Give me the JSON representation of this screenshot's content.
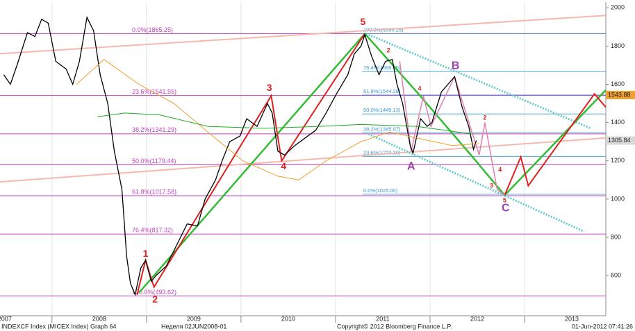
{
  "chart_data": {
    "type": "line",
    "xlim": [
      2007.45,
      2013.86
    ],
    "ylim": [
      390,
      2030
    ],
    "yticks": [
      600,
      800,
      1000,
      1200,
      1400,
      1600,
      1800,
      2000
    ],
    "xticks": [
      {
        "value": 2007.5,
        "label": "2007"
      },
      {
        "value": 2008.5,
        "label": "2008"
      },
      {
        "value": 2009.5,
        "label": "2009"
      },
      {
        "value": 2010.5,
        "label": "2010"
      },
      {
        "value": 2011.5,
        "label": "2011"
      },
      {
        "value": 2012.5,
        "label": "2012"
      },
      {
        "value": 2013.5,
        "label": "2013"
      }
    ],
    "xgrid": [
      2008,
      2009,
      2010,
      2011,
      2012,
      2013
    ],
    "series": [
      {
        "color": "#000000",
        "x": [
          2007.49,
          2007.56,
          2007.63,
          2007.74,
          2007.82,
          2007.89,
          2007.96,
          2008.04,
          2008.15,
          2008.22,
          2008.29,
          2008.37,
          2008.44,
          2008.51,
          2008.59,
          2008.66,
          2008.74,
          2008.79,
          2008.83,
          2008.88,
          2008.94,
          2008.99,
          2009.05,
          2009.1,
          2009.21,
          2009.32,
          2009.43,
          2009.54,
          2009.62,
          2009.73,
          2009.8,
          2009.88,
          2009.99,
          2010.06,
          2010.17,
          2010.28,
          2010.33,
          2010.39,
          2010.46,
          2010.57,
          2010.68,
          2010.79,
          2010.9,
          2011.01,
          2011.13,
          2011.2,
          2011.27,
          2011.31,
          2011.38,
          2011.46,
          2011.53,
          2011.6,
          2011.65,
          2011.71,
          2011.79,
          2011.82,
          2011.9,
          2011.97,
          2012.02,
          2012.12,
          2012.19,
          2012.26,
          2012.34,
          2012.41,
          2012.46,
          2012.49
        ],
        "values": [
          1650,
          1600,
          1700,
          1870,
          1850,
          1940,
          1920,
          1720,
          1680,
          1600,
          1720,
          1950,
          1880,
          1650,
          1500,
          1250,
          1050,
          700,
          560,
          500,
          640,
          680,
          570,
          600,
          650,
          760,
          870,
          860,
          1000,
          1100,
          1200,
          1300,
          1330,
          1420,
          1380,
          1500,
          1450,
          1250,
          1230,
          1280,
          1320,
          1360,
          1450,
          1550,
          1650,
          1760,
          1800,
          1860,
          1750,
          1650,
          1720,
          1730,
          1600,
          1500,
          1280,
          1240,
          1420,
          1380,
          1400,
          1560,
          1600,
          1640,
          1480,
          1380,
          1260,
          1305.84
        ]
      },
      {
        "color": "#f0a030",
        "x": [
          2008.26,
          2008.55,
          2008.92,
          2009.29,
          2009.65,
          2010.02,
          2010.39,
          2010.61,
          2010.9,
          2011.27,
          2011.57,
          2011.86,
          2012.23,
          2012.52
        ],
        "values": [
          1600,
          1730,
          1600,
          1500,
          1350,
          1200,
          1120,
          1100,
          1200,
          1300,
          1350,
          1320,
          1280,
          1290
        ]
      },
      {
        "color": "#22aa22",
        "x": [
          2008.48,
          2008.77,
          2009.14,
          2009.65,
          2010.24,
          2010.83,
          2011.27,
          2011.86,
          2012.45
        ],
        "values": [
          1430,
          1450,
          1440,
          1380,
          1370,
          1380,
          1390,
          1380,
          1340
        ]
      }
    ],
    "fib_color": "#c040c0",
    "fib_levels": [
      {
        "value": 1865.25,
        "label": "0.0%(1865.25)"
      },
      {
        "value": 1541.55,
        "label": "23.6%(1541.55)"
      },
      {
        "value": 1341.29,
        "label": "38.2%(1341.29)"
      },
      {
        "value": 1179.44,
        "label": "50.0%(1179.44)"
      },
      {
        "value": 1017.58,
        "label": "61.8%(1017.58)"
      },
      {
        "value": 817.32,
        "label": "76.4%(817.32)"
      },
      {
        "value": 493.62,
        "label": "100.0%(493.62)"
      }
    ],
    "fib2_color": "#3399cc",
    "fib2_xlim": [
      2011.28,
      2013.86
    ],
    "fib2_levels": [
      {
        "value": 1865.25,
        "label": "100.0%(1865.25)"
      },
      {
        "value": 1666.95,
        "label": "76.4%(1666.95)"
      },
      {
        "value": 1544.28,
        "label": "61.8%(1544.28)"
      },
      {
        "value": 1445.13,
        "label": "50.0%(1445.13)"
      },
      {
        "value": 1345.97,
        "label": "38.2%(1345.97)"
      },
      {
        "value": 1223.3,
        "label": "23.6%(1223.30)"
      },
      {
        "value": 1025.0,
        "label": "0.0%(1025.00)"
      }
    ],
    "trendlines": [
      {
        "color": "#f4b8b0",
        "width": 2,
        "dash": false,
        "x": [
          2007.45,
          2013.86
        ],
        "values": [
          1760,
          1960
        ]
      },
      {
        "color": "#f4b8b0",
        "width": 2,
        "dash": false,
        "x": [
          2007.45,
          2013.86
        ],
        "values": [
          1090,
          1320
        ]
      },
      {
        "color": "#66cccc",
        "width": 3,
        "dash": true,
        "x": [
          2011.35,
          2013.7
        ],
        "values": [
          1860,
          1370
        ]
      },
      {
        "color": "#66cccc",
        "width": 3,
        "dash": true,
        "x": [
          2011.35,
          2013.63
        ],
        "values": [
          1340,
          830
        ]
      },
      {
        "color": "#33bb33",
        "width": 2.5,
        "dash": false,
        "x": [
          2008.92,
          2011.31,
          2011.86,
          2012.45,
          2012.79,
          2013.86
        ],
        "values": [
          510,
          1865,
          1560,
          1220,
          1020,
          1570
        ]
      },
      {
        "color": "#dd2222",
        "width": 2,
        "dash": false,
        "x": [
          2008.9,
          2008.99,
          2009.08,
          2010.32,
          2010.43,
          2011.31
        ],
        "values": [
          500,
          680,
          540,
          1540,
          1200,
          1865
        ]
      },
      {
        "color": "#dd2222",
        "width": 2,
        "dash": false,
        "x": [
          2012.79,
          2012.96,
          2013.04,
          2013.74,
          2013.86
        ],
        "values": [
          1020,
          1220,
          1070,
          1550,
          1480
        ]
      },
      {
        "color": "#e080b0",
        "width": 1.5,
        "dash": false,
        "x": [
          2011.68,
          2011.8,
          2011.93,
          2012.01,
          2012.26,
          2012.52,
          2012.58,
          2012.71,
          2012.79
        ],
        "values": [
          1720,
          1250,
          1540,
          1380,
          1640,
          1230,
          1400,
          1050,
          1020
        ]
      }
    ],
    "annotations": [
      {
        "text": "5",
        "x": 2011.29,
        "y": 1924,
        "color": "#dd2222",
        "size": 14
      },
      {
        "text": "3",
        "x": 2010.3,
        "y": 1579,
        "color": "#dd2222",
        "size": 14
      },
      {
        "text": "4",
        "x": 2010.45,
        "y": 1169,
        "color": "#dd2222",
        "size": 14
      },
      {
        "text": "1",
        "x": 2008.99,
        "y": 712,
        "color": "#dd2222",
        "size": 14
      },
      {
        "text": "2",
        "x": 2009.09,
        "y": 473,
        "color": "#dd2222",
        "size": 14
      },
      {
        "text": "A",
        "x": 2011.8,
        "y": 1169,
        "color": "#a040b0",
        "size": 16
      },
      {
        "text": "B",
        "x": 2012.27,
        "y": 1695,
        "color": "#a040b0",
        "size": 16
      },
      {
        "text": "C",
        "x": 2012.8,
        "y": 952,
        "color": "#a040b0",
        "size": 16
      },
      {
        "text": "2",
        "x": 2011.56,
        "y": 1775,
        "color": "#dd2222",
        "size": 9
      },
      {
        "text": "4",
        "x": 2011.89,
        "y": 1576,
        "color": "#dd2222",
        "size": 9
      },
      {
        "text": "2",
        "x": 2012.58,
        "y": 1423,
        "color": "#dd2222",
        "size": 9
      },
      {
        "text": "4",
        "x": 2012.74,
        "y": 1151,
        "color": "#dd2222",
        "size": 9
      },
      {
        "text": "3",
        "x": 2012.65,
        "y": 1068,
        "color": "#dd2222",
        "size": 9
      },
      {
        "text": "5",
        "x": 2012.79,
        "y": 992,
        "color": "#dd2222",
        "size": 9
      }
    ],
    "marker_price": 1543.88,
    "marker_color": "#f0a030",
    "last_price": 1305.84,
    "last_color": "#d8d8d8",
    "footer": {
      "left": "INDEXCF Index (MICEX Index) Graph 64",
      "period": "Неделя 02JUN2008-01",
      "copyright": "Copyright© 2012 Bloomberg Finance L.P.",
      "date": "01-Jun-2012 07:41:26"
    }
  }
}
